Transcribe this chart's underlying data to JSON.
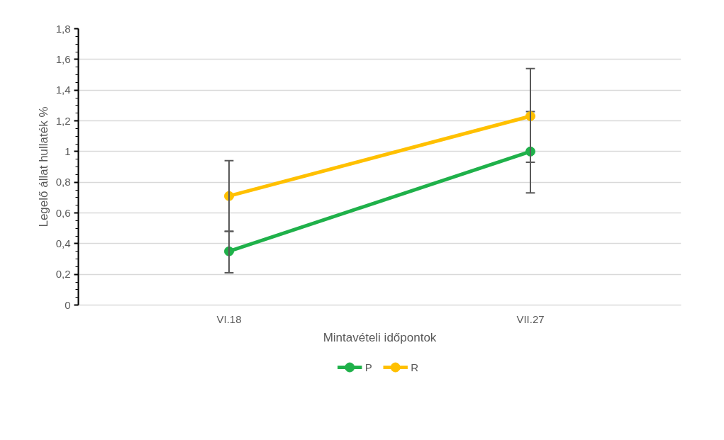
{
  "chart_data": {
    "type": "line",
    "xlabel": "Mintavételi időpontok",
    "ylabel": "Legelő állat hullaték %",
    "categories": [
      "VI.18",
      "VII.27"
    ],
    "series": [
      {
        "name": "P",
        "color": "#1fb14a",
        "values": [
          0.35,
          1.0
        ],
        "errors": [
          [
            0.21,
            0.48
          ],
          [
            0.73,
            1.26
          ]
        ]
      },
      {
        "name": "R",
        "color": "#ffc000",
        "values": [
          0.71,
          1.23
        ],
        "errors": [
          [
            0.48,
            0.94
          ],
          [
            0.93,
            1.54
          ]
        ]
      }
    ],
    "ylim": [
      0,
      1.8
    ],
    "yticks": [
      0,
      {
        "value": 0.2,
        "label": "0,2"
      },
      {
        "value": 0.4,
        "label": "0,4"
      },
      {
        "value": 0.6,
        "label": "0,6"
      },
      {
        "value": 0.8,
        "label": "0,8"
      },
      1,
      {
        "value": 1.2,
        "label": "1,2"
      },
      {
        "value": 1.4,
        "label": "1,4"
      },
      {
        "value": 1.6,
        "label": "1,6"
      },
      {
        "value": 1.8,
        "label": "1,8"
      }
    ],
    "grid": "y",
    "legend": "bottom",
    "marker": "circle",
    "line_style": "solid"
  }
}
